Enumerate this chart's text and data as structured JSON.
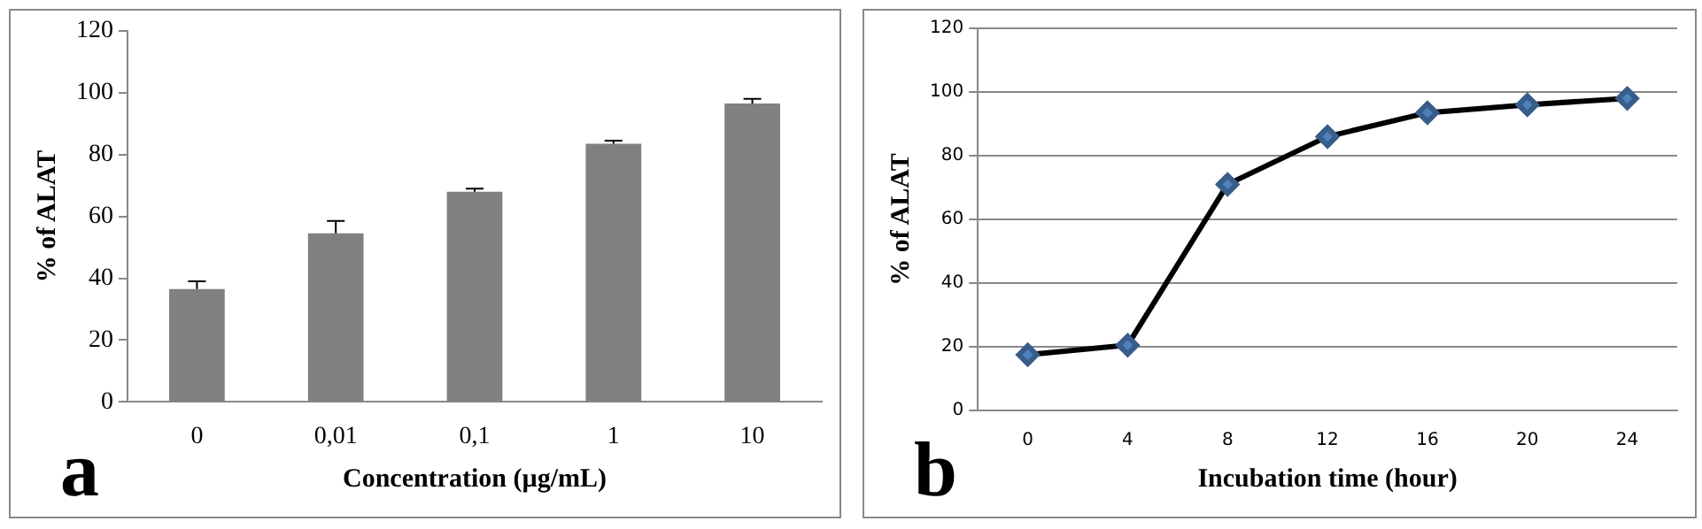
{
  "chart_data": [
    {
      "type": "bar",
      "categories": [
        "0",
        "0,01",
        "0,1",
        "1",
        "10"
      ],
      "values": [
        36.5,
        54.5,
        68,
        83.5,
        96.5
      ],
      "errors": [
        2.5,
        4,
        1,
        1,
        1.5
      ],
      "color": "#808080",
      "xlabel": "Concentration (µg/mL)",
      "ylabel": "% of ALAT",
      "ylim": [
        0,
        120
      ],
      "yticks": [
        0,
        20,
        40,
        60,
        80,
        100,
        120
      ],
      "grid": false,
      "legend": false,
      "annotations": [
        "a"
      ]
    },
    {
      "type": "line",
      "categories": [
        "0",
        "4",
        "8",
        "12",
        "16",
        "20",
        "24"
      ],
      "series": [
        {
          "color": "#000000",
          "values": [
            17.5,
            20.5,
            71,
            86,
            93.5,
            96,
            98
          ]
        }
      ],
      "marker": "diamond",
      "xlabel": "Incubation time (hour)",
      "ylabel": "% of ALAT",
      "ylim": [
        0,
        120
      ],
      "yticks": [
        0,
        20,
        40,
        60,
        80,
        100,
        120
      ],
      "grid": "y",
      "legend": false,
      "annotations": [
        "b"
      ]
    }
  ]
}
